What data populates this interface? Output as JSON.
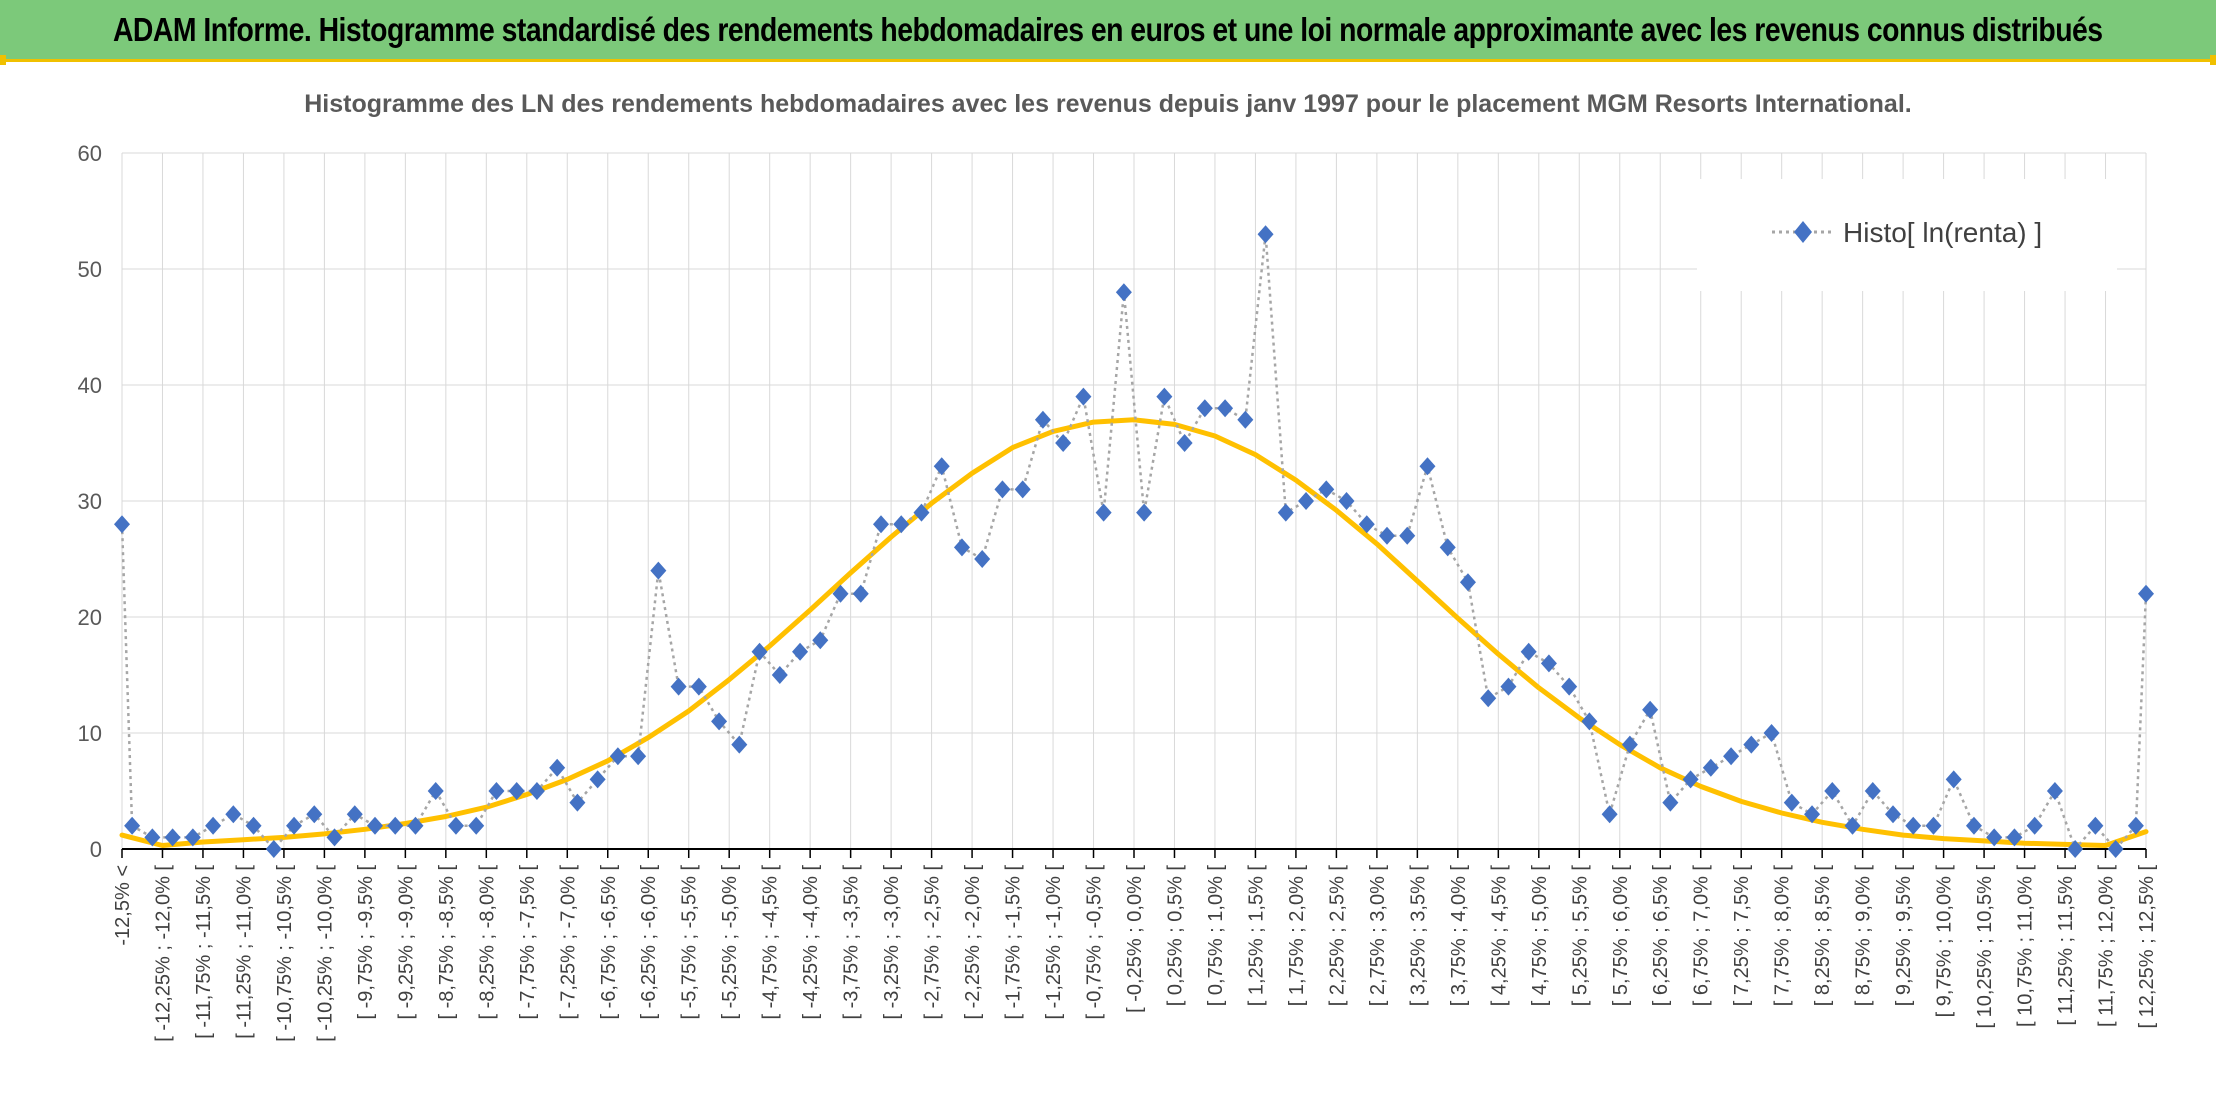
{
  "banner": {
    "title": "ADAM Informe. Histogramme standardisé des rendements hebdomadaires en euros et une loi normale approximante avec les revenus connus distribués"
  },
  "colors": {
    "banner_bg": "#7cc97a",
    "banner_accent": "#f0c000",
    "histogram": "#4472c4",
    "histogram_line": "#a6a6a6",
    "normal_curve": "#ffc000",
    "grid": "#d9d9d9"
  },
  "chart_data": {
    "type": "line",
    "title": "Histogramme des LN des rendements hebdomadaires avec les revenus depuis janv 1997 pour le placement MGM Resorts International.",
    "xlabel": "",
    "ylabel": "",
    "ylim": [
      0,
      60
    ],
    "yticks": [
      0,
      10,
      20,
      30,
      40,
      50,
      60
    ],
    "grid": true,
    "legend_position": "top-right",
    "categories": [
      "-12,5% <",
      "[ -12,25% ; -12,0% [",
      "[ -11,75% ; -11,5% [",
      "[ -11,25% ; -11,0% [",
      "[ -10,75% ; -10,5% [",
      "[ -10,25% ; -10,0% [",
      "[ -9,75% ; -9,5% [",
      "[ -9,25% ; -9,0% [",
      "[ -8,75% ; -8,5% [",
      "[ -8,25% ; -8,0% [",
      "[ -7,75% ; -7,5% [",
      "[ -7,25% ; -7,0% [",
      "[ -6,75% ; -6,5% [",
      "[ -6,25% ; -6,0% [",
      "[ -5,75% ; -5,5% [",
      "[ -5,25% ; -5,0% [",
      "[ -4,75% ; -4,5% [",
      "[ -4,25% ; -4,0% [",
      "[ -3,75% ; -3,5% [",
      "[ -3,25% ; -3,0% [",
      "[ -2,75% ; -2,5% [",
      "[ -2,25% ; -2,0% [",
      "[ -1,75% ; -1,5% [",
      "[ -1,25% ; -1,0% [",
      "[ -0,75% ; -0,5% [",
      "[ -0,25% ; 0,0% [",
      "[ 0,25% ; 0,5% [",
      "[ 0,75% ; 1,0% [",
      "[ 1,25% ; 1,5% [",
      "[ 1,75% ; 2,0% [",
      "[ 2,25% ; 2,5% [",
      "[ 2,75% ; 3,0% [",
      "[ 3,25% ; 3,5% [",
      "[ 3,75% ; 4,0% [",
      "[ 4,25% ; 4,5% [",
      "[ 4,75% ; 5,0% [",
      "[ 5,25% ; 5,5% [",
      "[ 5,75% ; 6,0% [",
      "[ 6,25% ; 6,5% [",
      "[ 6,75% ; 7,0% [",
      "[ 7,25% ; 7,5% [",
      "[ 7,75% ; 8,0% [",
      "[ 8,25% ; 8,5% [",
      "[ 8,75% ; 9,0% [",
      "[ 9,25% ; 9,5% [",
      "[ 9,75% ; 10,0% [",
      "[ 10,25% ; 10,5% [",
      "[ 10,75% ; 11,0% [",
      "[ 11,25% ; 11,5% [",
      "[ 11,75% ; 12,0% [",
      "[ 12,25% ; 12,5% ["
    ],
    "series": [
      {
        "name": "Histo[ ln(renta) ]",
        "style": "dotted-line-diamond-markers",
        "x": [
          -12.5,
          -12.375,
          -12.125,
          -11.875,
          -11.625,
          -11.375,
          -11.125,
          -10.875,
          -10.625,
          -10.375,
          -10.125,
          -9.875,
          -9.625,
          -9.375,
          -9.125,
          -8.875,
          -8.625,
          -8.375,
          -8.125,
          -7.875,
          -7.625,
          -7.375,
          -7.125,
          -6.875,
          -6.625,
          -6.375,
          -6.125,
          -5.875,
          -5.625,
          -5.375,
          -5.125,
          -4.875,
          -4.625,
          -4.375,
          -4.125,
          -3.875,
          -3.625,
          -3.375,
          -3.125,
          -2.875,
          -2.625,
          -2.375,
          -2.125,
          -1.875,
          -1.625,
          -1.375,
          -1.125,
          -0.875,
          -0.625,
          -0.375,
          -0.125,
          0.125,
          0.375,
          0.625,
          0.875,
          1.125,
          1.375,
          1.625,
          1.875,
          2.125,
          2.375,
          2.625,
          2.875,
          3.125,
          3.375,
          3.625,
          3.875,
          4.125,
          4.375,
          4.625,
          4.875,
          5.125,
          5.375,
          5.625,
          5.875,
          6.125,
          6.375,
          6.625,
          6.875,
          7.125,
          7.375,
          7.625,
          7.875,
          8.125,
          8.375,
          8.625,
          8.875,
          9.125,
          9.375,
          9.625,
          9.875,
          10.125,
          10.375,
          10.625,
          10.875,
          11.125,
          11.375,
          11.625,
          11.875,
          12.125,
          12.375,
          12.5
        ],
        "values": [
          28,
          2,
          1,
          1,
          1,
          2,
          3,
          2,
          0,
          2,
          3,
          1,
          3,
          2,
          2,
          2,
          5,
          2,
          2,
          5,
          5,
          5,
          7,
          4,
          6,
          8,
          8,
          24,
          14,
          14,
          11,
          9,
          17,
          15,
          17,
          18,
          22,
          22,
          28,
          28,
          29,
          33,
          26,
          25,
          31,
          31,
          37,
          35,
          39,
          29,
          48,
          29,
          39,
          35,
          38,
          38,
          37,
          53,
          29,
          30,
          31,
          30,
          28,
          27,
          27,
          33,
          26,
          23,
          13,
          14,
          17,
          16,
          14,
          11,
          3,
          9,
          12,
          4,
          6,
          7,
          8,
          9,
          10,
          4,
          3,
          5,
          2,
          5,
          3,
          2,
          2,
          6,
          2,
          1,
          1,
          2,
          5,
          0,
          2,
          0,
          2,
          22
        ]
      },
      {
        "name": "",
        "style": "smooth-line",
        "x": [
          -12.5,
          -12.0,
          -11.5,
          -11.0,
          -10.5,
          -10.0,
          -9.5,
          -9.0,
          -8.5,
          -8.0,
          -7.5,
          -7.0,
          -6.5,
          -6.0,
          -5.5,
          -5.0,
          -4.5,
          -4.0,
          -3.5,
          -3.0,
          -2.5,
          -2.0,
          -1.5,
          -1.0,
          -0.5,
          0.0,
          0.5,
          1.0,
          1.5,
          2.0,
          2.5,
          3.0,
          3.5,
          4.0,
          4.5,
          5.0,
          5.5,
          6.0,
          6.5,
          7.0,
          7.5,
          8.0,
          8.5,
          9.0,
          9.5,
          10.0,
          10.5,
          11.0,
          11.5,
          12.0,
          12.5
        ],
        "values": [
          1.2,
          0.3,
          0.6,
          0.8,
          1.0,
          1.3,
          1.7,
          2.2,
          2.8,
          3.6,
          4.7,
          6.0,
          7.6,
          9.6,
          11.9,
          14.6,
          17.5,
          20.6,
          23.8,
          26.9,
          29.8,
          32.4,
          34.6,
          36.0,
          36.8,
          37.0,
          36.6,
          35.6,
          34.0,
          31.8,
          29.2,
          26.3,
          23.1,
          19.9,
          16.8,
          13.9,
          11.3,
          9.0,
          7.0,
          5.4,
          4.1,
          3.1,
          2.3,
          1.7,
          1.2,
          0.9,
          0.7,
          0.5,
          0.4,
          0.3,
          1.5
        ]
      }
    ]
  }
}
